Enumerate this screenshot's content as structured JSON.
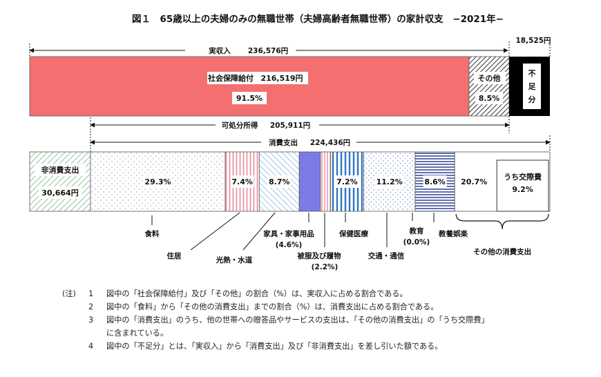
{
  "chart_data": {
    "type": "bar",
    "title": "図１　65歳以上の夫婦のみの無職世帯（夫婦高齢者無職世帯）の家計収支　−2021年−",
    "income": {
      "label": "実収入",
      "value_text": "236,576円",
      "value": 236576,
      "segments": [
        {
          "name": "社会保障給付",
          "value": 216519,
          "value_text": "216,519円",
          "percent": 91.5,
          "percent_text": "91.5%",
          "color": "#f47070"
        },
        {
          "name": "その他",
          "value": 20057,
          "percent": 8.5,
          "percent_text": "8.5%",
          "color": "#ffffff"
        },
        {
          "name": "不足分",
          "value": 18525,
          "value_text": "18,525円",
          "color": "#000000"
        }
      ]
    },
    "disposable": {
      "label": "可処分所得",
      "value_text": "205,911円",
      "value": 205911
    },
    "consumption": {
      "label": "消費支出",
      "value_text": "224,436円",
      "value": 224436
    },
    "non_consumption": {
      "label": "非消費支出",
      "value_text": "30,664円",
      "value": 30664
    },
    "expense_segments": [
      {
        "name": "食料",
        "percent": 29.3,
        "percent_text": "29.3%"
      },
      {
        "name": "住居",
        "percent": 7.4,
        "percent_text": "7.4%"
      },
      {
        "name": "光熱・水道",
        "percent": 8.7,
        "percent_text": "8.7%"
      },
      {
        "name": "家具・家事用品",
        "percent": 4.6,
        "percent_text": "(4.6%)"
      },
      {
        "name": "被服及び履物",
        "percent": 2.2,
        "percent_text": "(2.2%)"
      },
      {
        "name": "保健医療",
        "percent": 7.2,
        "percent_text": "7.2%"
      },
      {
        "name": "交通・通信",
        "percent": 11.2,
        "percent_text": "11.2%"
      },
      {
        "name": "教育",
        "percent": 0.0,
        "percent_text": "(0.0%)"
      },
      {
        "name": "教養娯楽",
        "percent": 8.6,
        "percent_text": "8.6%"
      },
      {
        "name": "その他の消費支出",
        "percent": 20.7,
        "percent_text": "20.7%"
      }
    ],
    "sub_item": {
      "name": "うち交際費",
      "percent": 9.2,
      "percent_text": "9.2%"
    }
  },
  "notes": {
    "head": "(注)",
    "items": [
      {
        "num": "1",
        "text": "図中の「社会保障給付」及び「その他」の割合（%）は、実収入に占める割合である。"
      },
      {
        "num": "2",
        "text": "図中の「食料」から「その他の消費支出」までの割合（%）は、消費支出に占める割合である。"
      },
      {
        "num": "3",
        "text": "図中の「消費支出」のうち、他の世帯への贈答品やサービスの支出は、「その他の消費支出」の「うち交際費」"
      },
      {
        "num": "",
        "text": "に含まれている。"
      },
      {
        "num": "4",
        "text": "図中の「不足分」とは、「実収入」から「消費支出」及び「非消費支出」を差し引いた額である。"
      }
    ]
  }
}
